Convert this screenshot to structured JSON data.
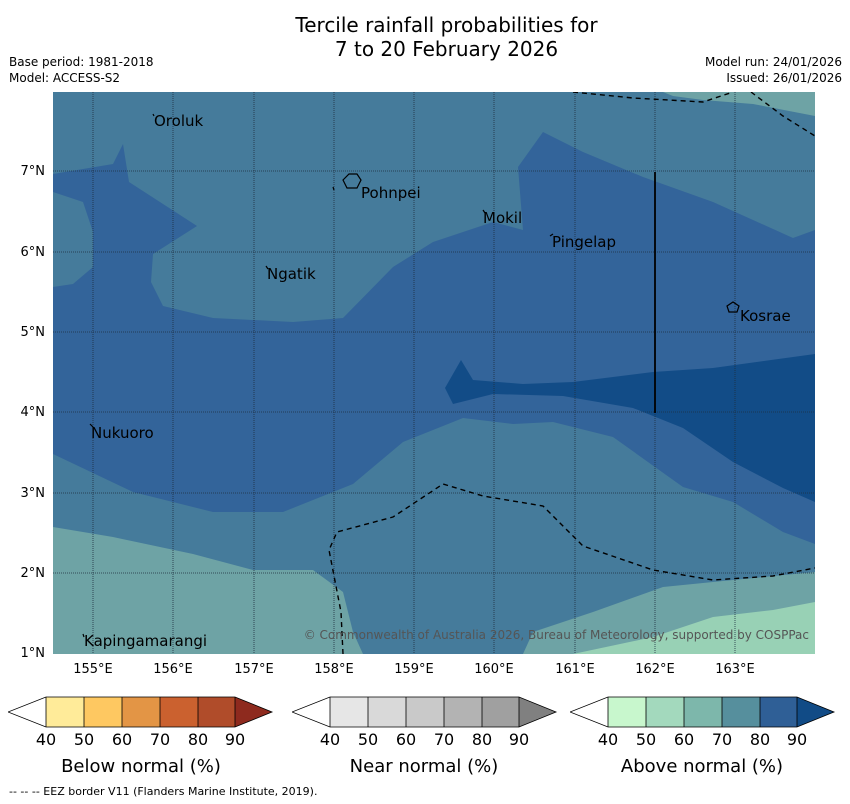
{
  "title": {
    "line1": "Tercile rainfall probabilities for",
    "line2": "7 to 20 February 2026"
  },
  "meta": {
    "base_period": "Base period: 1981-2018",
    "model": "Model: ACCESS-S2",
    "model_run": "Model run: 24/01/2026",
    "issued": "Issued: 26/01/2026"
  },
  "axes": {
    "lat_labels": [
      "7°N",
      "6°N",
      "5°N",
      "4°N",
      "3°N",
      "2°N",
      "1°N"
    ],
    "lon_labels": [
      "155°E",
      "156°E",
      "157°E",
      "158°E",
      "159°E",
      "160°E",
      "161°E",
      "162°E",
      "163°E"
    ]
  },
  "places": {
    "oroluk": "Oroluk",
    "pohnpei": "Pohnpei",
    "mokil": "Mokil",
    "pingelap": "Pingelap",
    "ngatik": "Ngatik",
    "kosrae": "Kosrae",
    "nukuoro": "Nukuoro",
    "kapingamarangi": "Kapingamarangi"
  },
  "copyright": "© Commonwealth of Australia 2026, Bureau of Meteorology, supported by COSPPac",
  "legend": {
    "ticks": [
      "40",
      "50",
      "60",
      "70",
      "80",
      "90"
    ],
    "below": {
      "title": "Below normal (%)",
      "colors": [
        "#ffffff",
        "#ffeb99",
        "#fec861",
        "#e39545",
        "#cb612f",
        "#b04c2a",
        "#8e2a1e"
      ]
    },
    "near": {
      "title": "Near normal (%)",
      "colors": [
        "#ffffff",
        "#e6e6e6",
        "#d9d9d9",
        "#c9c9c9",
        "#b3b3b3",
        "#a0a0a0",
        "#808080"
      ]
    },
    "above": {
      "title": "Above normal (%)",
      "colors": [
        "#ffffff",
        "#c8f7cd",
        "#a3d9bd",
        "#7db7ab",
        "#568f9d",
        "#2f5f96",
        "#114b86"
      ]
    }
  },
  "footnote": "--  --  -- EEZ border V11 (Flanders Marine Institute, 2019)."
}
